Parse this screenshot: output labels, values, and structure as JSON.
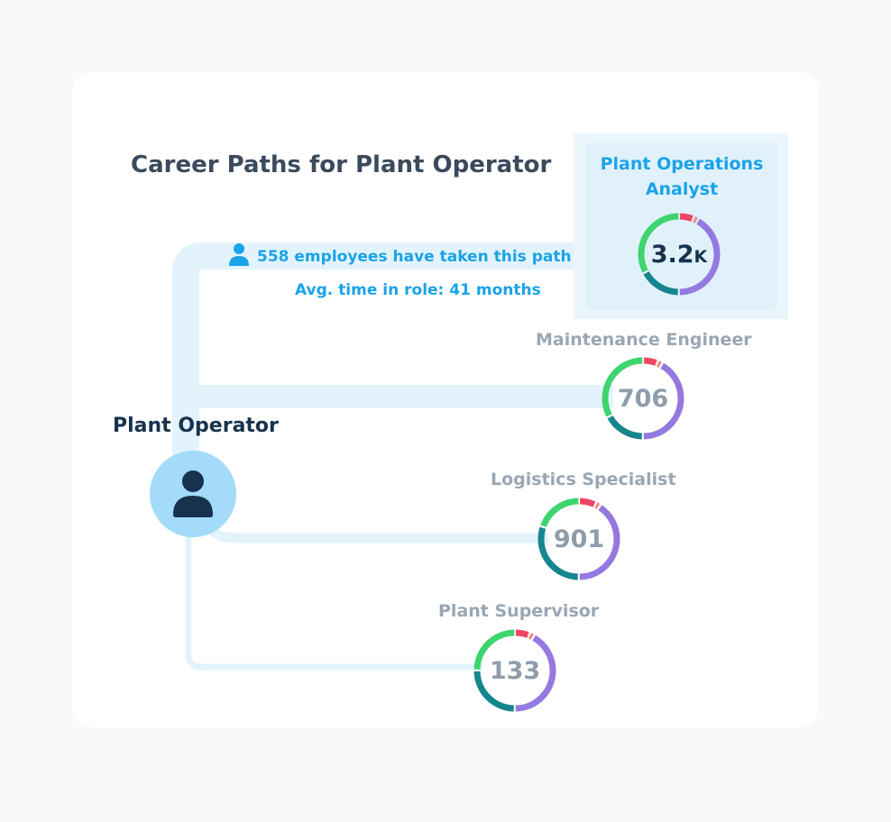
{
  "title": "Career Paths for Plant Operator",
  "source": {
    "label": "Plant Operator",
    "icon": "person-icon"
  },
  "path_info": {
    "employees_text": "558 employees have taken this path",
    "avg_time_text": "Avg. time in role: 41 months",
    "icon": "person-icon"
  },
  "colors": {
    "path": "#e3f3fc",
    "green": "#3ed46e",
    "teal": "#15868d",
    "purple": "#9379e0",
    "red": "#ef4565",
    "salmon": "#f58d7d",
    "active_text": "#1aa3e8",
    "muted_text": "#9aa6b4",
    "dark_text": "#17324d"
  },
  "targets": [
    {
      "label": "Plant Operations Analyst",
      "value": "3.2",
      "unit": "K",
      "active": true,
      "segments": [
        {
          "color": "#ef4565",
          "fraction": 0.06
        },
        {
          "color": "#f58d7d",
          "fraction": 0.02
        },
        {
          "color": "#9379e0",
          "fraction": 0.42
        },
        {
          "color": "#15868d",
          "fraction": 0.17
        },
        {
          "color": "#3ed46e",
          "fraction": 0.33
        }
      ]
    },
    {
      "label": "Maintenance Engineer",
      "value": "706",
      "unit": "",
      "active": false,
      "segments": [
        {
          "color": "#ef4565",
          "fraction": 0.06
        },
        {
          "color": "#f58d7d",
          "fraction": 0.02
        },
        {
          "color": "#9379e0",
          "fraction": 0.42
        },
        {
          "color": "#15868d",
          "fraction": 0.17
        },
        {
          "color": "#3ed46e",
          "fraction": 0.33
        }
      ]
    },
    {
      "label": "Logistics Specialist",
      "value": "901",
      "unit": "",
      "active": false,
      "segments": [
        {
          "color": "#ef4565",
          "fraction": 0.07
        },
        {
          "color": "#f58d7d",
          "fraction": 0.02
        },
        {
          "color": "#9379e0",
          "fraction": 0.41
        },
        {
          "color": "#15868d",
          "fraction": 0.3
        },
        {
          "color": "#3ed46e",
          "fraction": 0.2
        }
      ]
    },
    {
      "label": "Plant Supervisor",
      "value": "133",
      "unit": "",
      "active": false,
      "segments": [
        {
          "color": "#ef4565",
          "fraction": 0.06
        },
        {
          "color": "#f58d7d",
          "fraction": 0.02
        },
        {
          "color": "#9379e0",
          "fraction": 0.42
        },
        {
          "color": "#15868d",
          "fraction": 0.25
        },
        {
          "color": "#3ed46e",
          "fraction": 0.25
        }
      ]
    }
  ]
}
